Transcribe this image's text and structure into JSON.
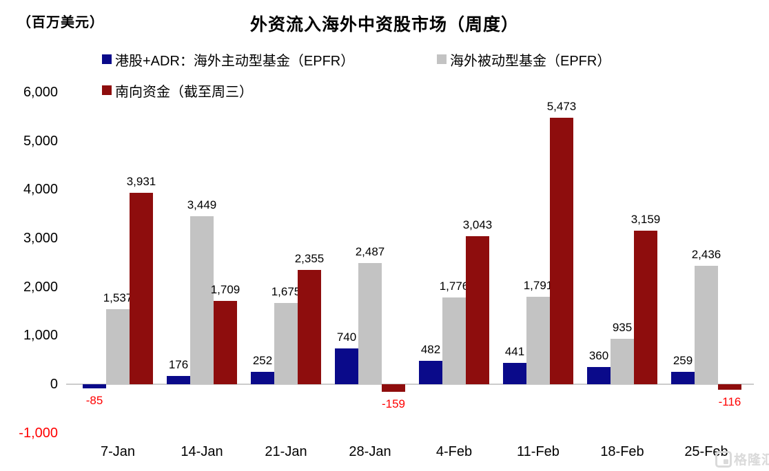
{
  "watermark": {
    "text": "格隆汇"
  },
  "colors": {
    "negative_label": "#FF0000",
    "axis_line": "#CCCCCC",
    "positive_label": "#000000",
    "watermark": "#D9D9D9"
  },
  "chart_data": {
    "type": "bar",
    "title": "外资流入海外中资股市场（周度）",
    "unit_label": "（百万美元）",
    "categories": [
      "7-Jan",
      "14-Jan",
      "21-Jan",
      "28-Jan",
      "4-Feb",
      "11-Feb",
      "18-Feb",
      "25-Feb"
    ],
    "series": [
      {
        "name": "港股+ADR：海外主动型基金（EPFR）",
        "color": "#0A0A8A",
        "values": [
          -85,
          176,
          252,
          740,
          482,
          441,
          360,
          259
        ]
      },
      {
        "name": "海外被动型基金（EPFR）",
        "color": "#C3C3C3",
        "values": [
          1537,
          3449,
          1675,
          2487,
          1776,
          1791,
          935,
          2436
        ]
      },
      {
        "name": "南向资金（截至周三）",
        "color": "#8E0D0D",
        "values": [
          3931,
          1709,
          2355,
          -159,
          3043,
          5473,
          3159,
          -116
        ]
      }
    ],
    "ylim": [
      -1000,
      6000
    ],
    "ytick_step": 1000,
    "grid": false,
    "legend_position": "top-left",
    "value_labels": true,
    "xlabel": "",
    "ylabel": "百万美元"
  }
}
